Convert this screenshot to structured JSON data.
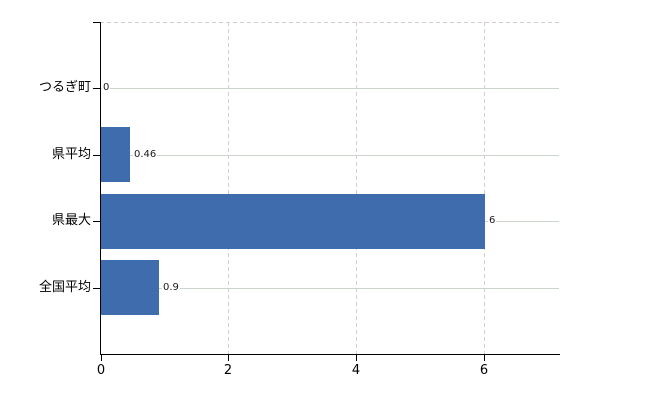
{
  "chart_data": {
    "type": "bar",
    "orientation": "horizontal",
    "title": "",
    "xlabel": "",
    "ylabel": "",
    "categories": [
      "つるぎ町",
      "県平均",
      "県最大",
      "全国平均"
    ],
    "values": [
      0,
      0.46,
      6,
      0.9
    ],
    "value_labels": [
      "0",
      "0.46",
      "6",
      "0.9"
    ],
    "x_ticks": [
      0,
      2,
      4,
      6
    ],
    "x_tick_labels": [
      "0",
      "2",
      "4",
      "6"
    ],
    "xlim": [
      0,
      7.2
    ],
    "grid": true,
    "legend_position": "none",
    "colors": {
      "bar": "#3e6cac",
      "axis": "#000000",
      "h_gridline": "#ccd5cc",
      "v_gridline": "#d5cdd3",
      "category_text": "#000000",
      "value_text": "#1a1a1a",
      "background": "#ffffff"
    }
  }
}
